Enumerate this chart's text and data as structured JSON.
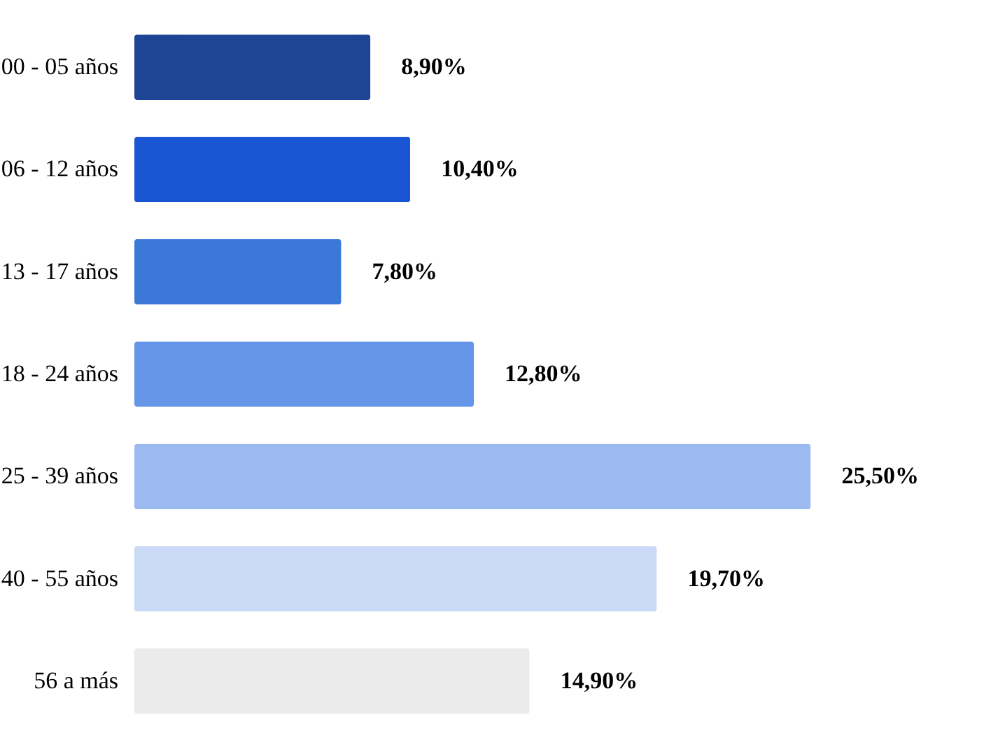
{
  "chart_data": {
    "type": "bar",
    "orientation": "horizontal",
    "tick_labels": "y",
    "categories": [
      "00 - 05 años",
      "06 - 12 años",
      "13 - 17 años",
      "18 - 24 años",
      "25 - 39 años",
      "40 - 55 años",
      "56 a más"
    ],
    "values": [
      8.9,
      10.4,
      7.8,
      12.8,
      25.5,
      19.7,
      14.9
    ],
    "colors": [
      "#1e4594",
      "#1a55d4",
      "#3b78d8",
      "#6495e6",
      "#9bbaf0",
      "#c9d9f6",
      "#ebebeb"
    ],
    "value_labels": [
      "8,90%",
      "10,40%",
      "7,80%",
      "12,80%",
      "25,50%",
      "19,70%",
      "14,90%"
    ]
  }
}
